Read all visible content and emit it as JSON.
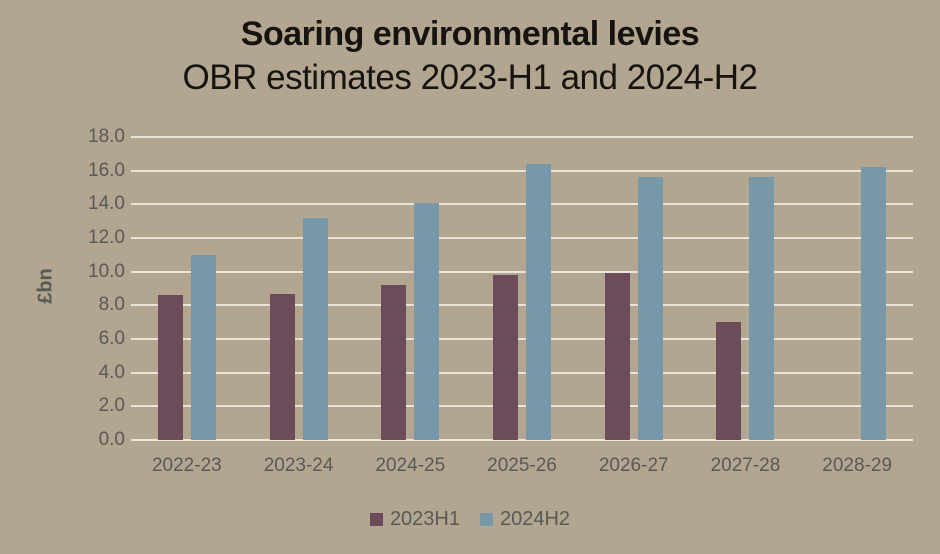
{
  "title": "Soaring environmental levies",
  "subtitle": "OBR estimates 2023-H1 and 2024-H2",
  "colors": {
    "background": "#b2a690",
    "title_text": "#161310",
    "axis_text": "#595955",
    "gridline": "#e9e5d9",
    "series": {
      "2023H1": "#6c4b5a",
      "2024H2": "#7897a9"
    }
  },
  "chart_data": {
    "type": "bar",
    "title": "Soaring environmental levies",
    "subtitle": "OBR estimates 2023-H1 and 2024-H2",
    "categories": [
      "2022-23",
      "2023-24",
      "2024-25",
      "2025-26",
      "2026-27",
      "2027-28",
      "2028-29"
    ],
    "series": [
      {
        "name": "2023H1",
        "color": "#6c4b5a",
        "values": [
          8.6,
          8.7,
          9.2,
          9.8,
          9.9,
          7.0,
          null
        ]
      },
      {
        "name": "2024H2",
        "color": "#7897a9",
        "values": [
          11.0,
          13.2,
          14.1,
          16.4,
          15.6,
          15.6,
          16.2
        ]
      }
    ],
    "xlabel": "",
    "ylabel": "£bn",
    "ylim": [
      0,
      18
    ],
    "ytick_labels": [
      "0.0",
      "2.0",
      "4.0",
      "6.0",
      "8.0",
      "10.0",
      "12.0",
      "14.0",
      "16.0",
      "18.0"
    ],
    "grid": true,
    "legend_position": "bottom"
  }
}
